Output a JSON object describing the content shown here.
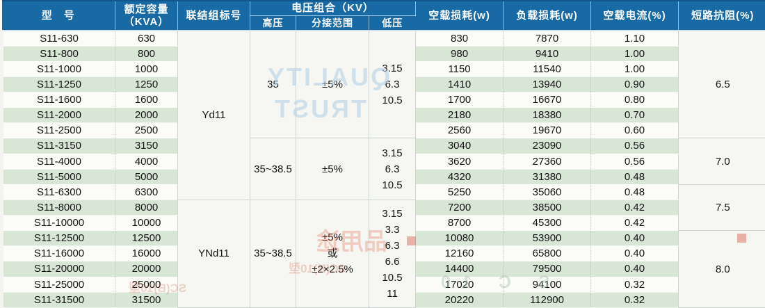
{
  "table": {
    "header": {
      "model": "型　号",
      "capacity_line1": "额定容量",
      "capacity_line2": "（KVA）",
      "vector_group": "联结组标号",
      "voltage_combo": "电压组合（KV）",
      "hv": "高压",
      "tap_range": "分接范围",
      "lv": "低压",
      "no_load_loss": "空载损耗(w)",
      "load_loss": "负载损耗(w)",
      "no_load_current": "空载电流(%)",
      "impedance": "短路抗阻(%)"
    },
    "rows": [
      {
        "model": "S11-630",
        "capacity": "630",
        "no_load_loss": "830",
        "load_loss": "7870",
        "no_load_current": "1.10"
      },
      {
        "model": "S11-800",
        "capacity": "800",
        "no_load_loss": "980",
        "load_loss": "9410",
        "no_load_current": "1.00"
      },
      {
        "model": "S11-1000",
        "capacity": "1000",
        "no_load_loss": "1150",
        "load_loss": "11540",
        "no_load_current": "1.00"
      },
      {
        "model": "S11-1250",
        "capacity": "1250",
        "no_load_loss": "1410",
        "load_loss": "13940",
        "no_load_current": "0.90"
      },
      {
        "model": "S11-1600",
        "capacity": "1600",
        "no_load_loss": "1700",
        "load_loss": "16670",
        "no_load_current": "0.80"
      },
      {
        "model": "S11-2000",
        "capacity": "2000",
        "no_load_loss": "2180",
        "load_loss": "18380",
        "no_load_current": "0.70"
      },
      {
        "model": "S11-2500",
        "capacity": "2500",
        "no_load_loss": "2560",
        "load_loss": "19670",
        "no_load_current": "0.60"
      },
      {
        "model": "S11-3150",
        "capacity": "3150",
        "no_load_loss": "3040",
        "load_loss": "23090",
        "no_load_current": "0.56"
      },
      {
        "model": "S11-4000",
        "capacity": "4000",
        "no_load_loss": "3620",
        "load_loss": "27360",
        "no_load_current": "0.56"
      },
      {
        "model": "S11-5000",
        "capacity": "5000",
        "no_load_loss": "4320",
        "load_loss": "31380",
        "no_load_current": "0.48"
      },
      {
        "model": "S11-6300",
        "capacity": "6300",
        "no_load_loss": "5250",
        "load_loss": "35060",
        "no_load_current": "0.48"
      },
      {
        "model": "S11-8000",
        "capacity": "8000",
        "no_load_loss": "7200",
        "load_loss": "38500",
        "no_load_current": "0.42"
      },
      {
        "model": "S11-10000",
        "capacity": "10000",
        "no_load_loss": "8700",
        "load_loss": "45300",
        "no_load_current": "0.42"
      },
      {
        "model": "S11-12500",
        "capacity": "12500",
        "no_load_loss": "10080",
        "load_loss": "53900",
        "no_load_current": "0.40"
      },
      {
        "model": "S11-16000",
        "capacity": "16000",
        "no_load_loss": "12160",
        "load_loss": "65800",
        "no_load_current": "0.40"
      },
      {
        "model": "S11-20000",
        "capacity": "20000",
        "no_load_loss": "14400",
        "load_loss": "79500",
        "no_load_current": "0.40"
      },
      {
        "model": "S11-25000",
        "capacity": "25000",
        "no_load_loss": "17020",
        "load_loss": "94100",
        "no_load_current": "0.32"
      },
      {
        "model": "S11-31500",
        "capacity": "31500",
        "no_load_loss": "20220",
        "load_loss": "112900",
        "no_load_current": "0.32"
      }
    ],
    "merged": {
      "vector_group": [
        {
          "start": 0,
          "span": 11,
          "lines": [
            "Yd11"
          ]
        },
        {
          "start": 11,
          "span": 7,
          "lines": [
            "YNd11"
          ]
        }
      ],
      "hv": [
        {
          "start": 0,
          "span": 7,
          "lines": [
            "35"
          ]
        },
        {
          "start": 7,
          "span": 4,
          "lines": [
            "35~38.5"
          ]
        },
        {
          "start": 11,
          "span": 7,
          "lines": [
            "35~38.5"
          ]
        }
      ],
      "tap": [
        {
          "start": 0,
          "span": 7,
          "lines": [
            "±5%"
          ]
        },
        {
          "start": 7,
          "span": 4,
          "lines": [
            "±5%"
          ]
        },
        {
          "start": 11,
          "span": 7,
          "lines": [
            "±5%",
            "或",
            "±2×2.5%"
          ]
        }
      ],
      "lv": [
        {
          "start": 0,
          "span": 7,
          "lines": [
            "3.15",
            "6.3",
            "10.5"
          ]
        },
        {
          "start": 7,
          "span": 4,
          "lines": [
            "3.15",
            "6.3",
            "10.5"
          ]
        },
        {
          "start": 11,
          "span": 7,
          "lines": [
            "3.15",
            "3.3",
            "6.3",
            "6.6",
            "10.5",
            "11"
          ]
        }
      ],
      "impedance": [
        {
          "start": 0,
          "span": 7,
          "lines": [
            "6.5"
          ]
        },
        {
          "start": 7,
          "span": 3,
          "lines": [
            "7.0"
          ]
        },
        {
          "start": 10,
          "span": 3,
          "lines": [
            "7.5"
          ]
        },
        {
          "start": 13,
          "span": 5,
          "lines": [
            "8.0"
          ]
        }
      ]
    },
    "colors": {
      "header_bg": "#186AA5",
      "header_text": "#FFFFFF",
      "row_white": "#FBFBF8",
      "row_green": "#D7E6D5",
      "merged_bg": "#F6F7F2",
      "body_text": "#121212"
    },
    "watermarks": {
      "quality_line1": "QUALITY",
      "quality_line2": "TRUST",
      "red_stamp": "品用途",
      "red_small": "SC(B)10型",
      "red_small2": "SC(B)10型",
      "green_small": "S C 10"
    }
  }
}
